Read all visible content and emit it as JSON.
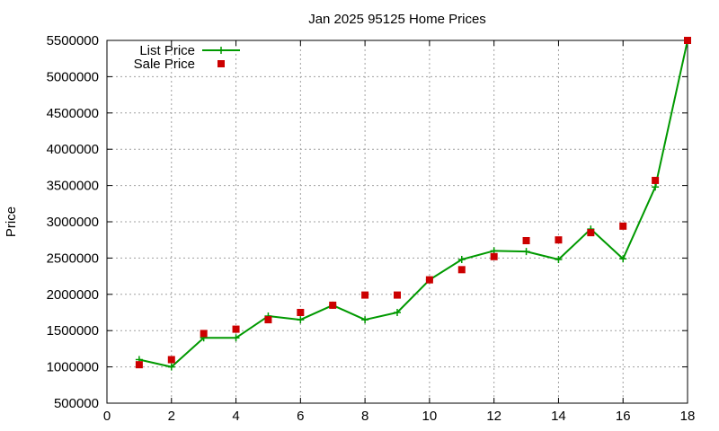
{
  "chart_data": {
    "type": "line",
    "title": "Jan 2025 95125 Home Prices",
    "xlabel": "",
    "ylabel": "Price",
    "xlim": [
      0,
      18
    ],
    "ylim": [
      500000,
      5500000
    ],
    "xticks": [
      0,
      2,
      4,
      6,
      8,
      10,
      12,
      14,
      16,
      18
    ],
    "yticks": [
      500000,
      1000000,
      1500000,
      2000000,
      2500000,
      3000000,
      3500000,
      4000000,
      4500000,
      5000000,
      5500000
    ],
    "xtick_labels": [
      "0",
      "2",
      "4",
      "6",
      "8",
      "10",
      "12",
      "14",
      "16",
      "18"
    ],
    "ytick_labels": [
      "500000",
      "1000000",
      "1500000",
      "2000000",
      "2500000",
      "3000000",
      "3500000",
      "4000000",
      "4500000",
      "5000000",
      "5500000"
    ],
    "grid": true,
    "legend_position": "top-left",
    "series": [
      {
        "name": "List Price",
        "style": "line-with-plus-markers",
        "color": "#009900",
        "x": [
          1,
          2,
          3,
          4,
          5,
          6,
          7,
          8,
          9,
          10,
          11,
          12,
          13,
          14,
          15,
          16,
          17,
          18
        ],
        "y": [
          1100000,
          1000000,
          1400000,
          1400000,
          1700000,
          1650000,
          1850000,
          1650000,
          1750000,
          2200000,
          2480000,
          2600000,
          2590000,
          2480000,
          2900000,
          2490000,
          3480000,
          5500000
        ]
      },
      {
        "name": "Sale Price",
        "style": "square-markers",
        "color": "#cc0000",
        "x": [
          1,
          2,
          3,
          4,
          5,
          6,
          7,
          8,
          9,
          10,
          11,
          12,
          13,
          14,
          15,
          16,
          17,
          18
        ],
        "y": [
          1030000,
          1100000,
          1460000,
          1520000,
          1650000,
          1750000,
          1850000,
          1990000,
          1990000,
          2200000,
          2340000,
          2520000,
          2740000,
          2750000,
          2850000,
          2940000,
          3570000,
          5500000
        ]
      }
    ]
  }
}
